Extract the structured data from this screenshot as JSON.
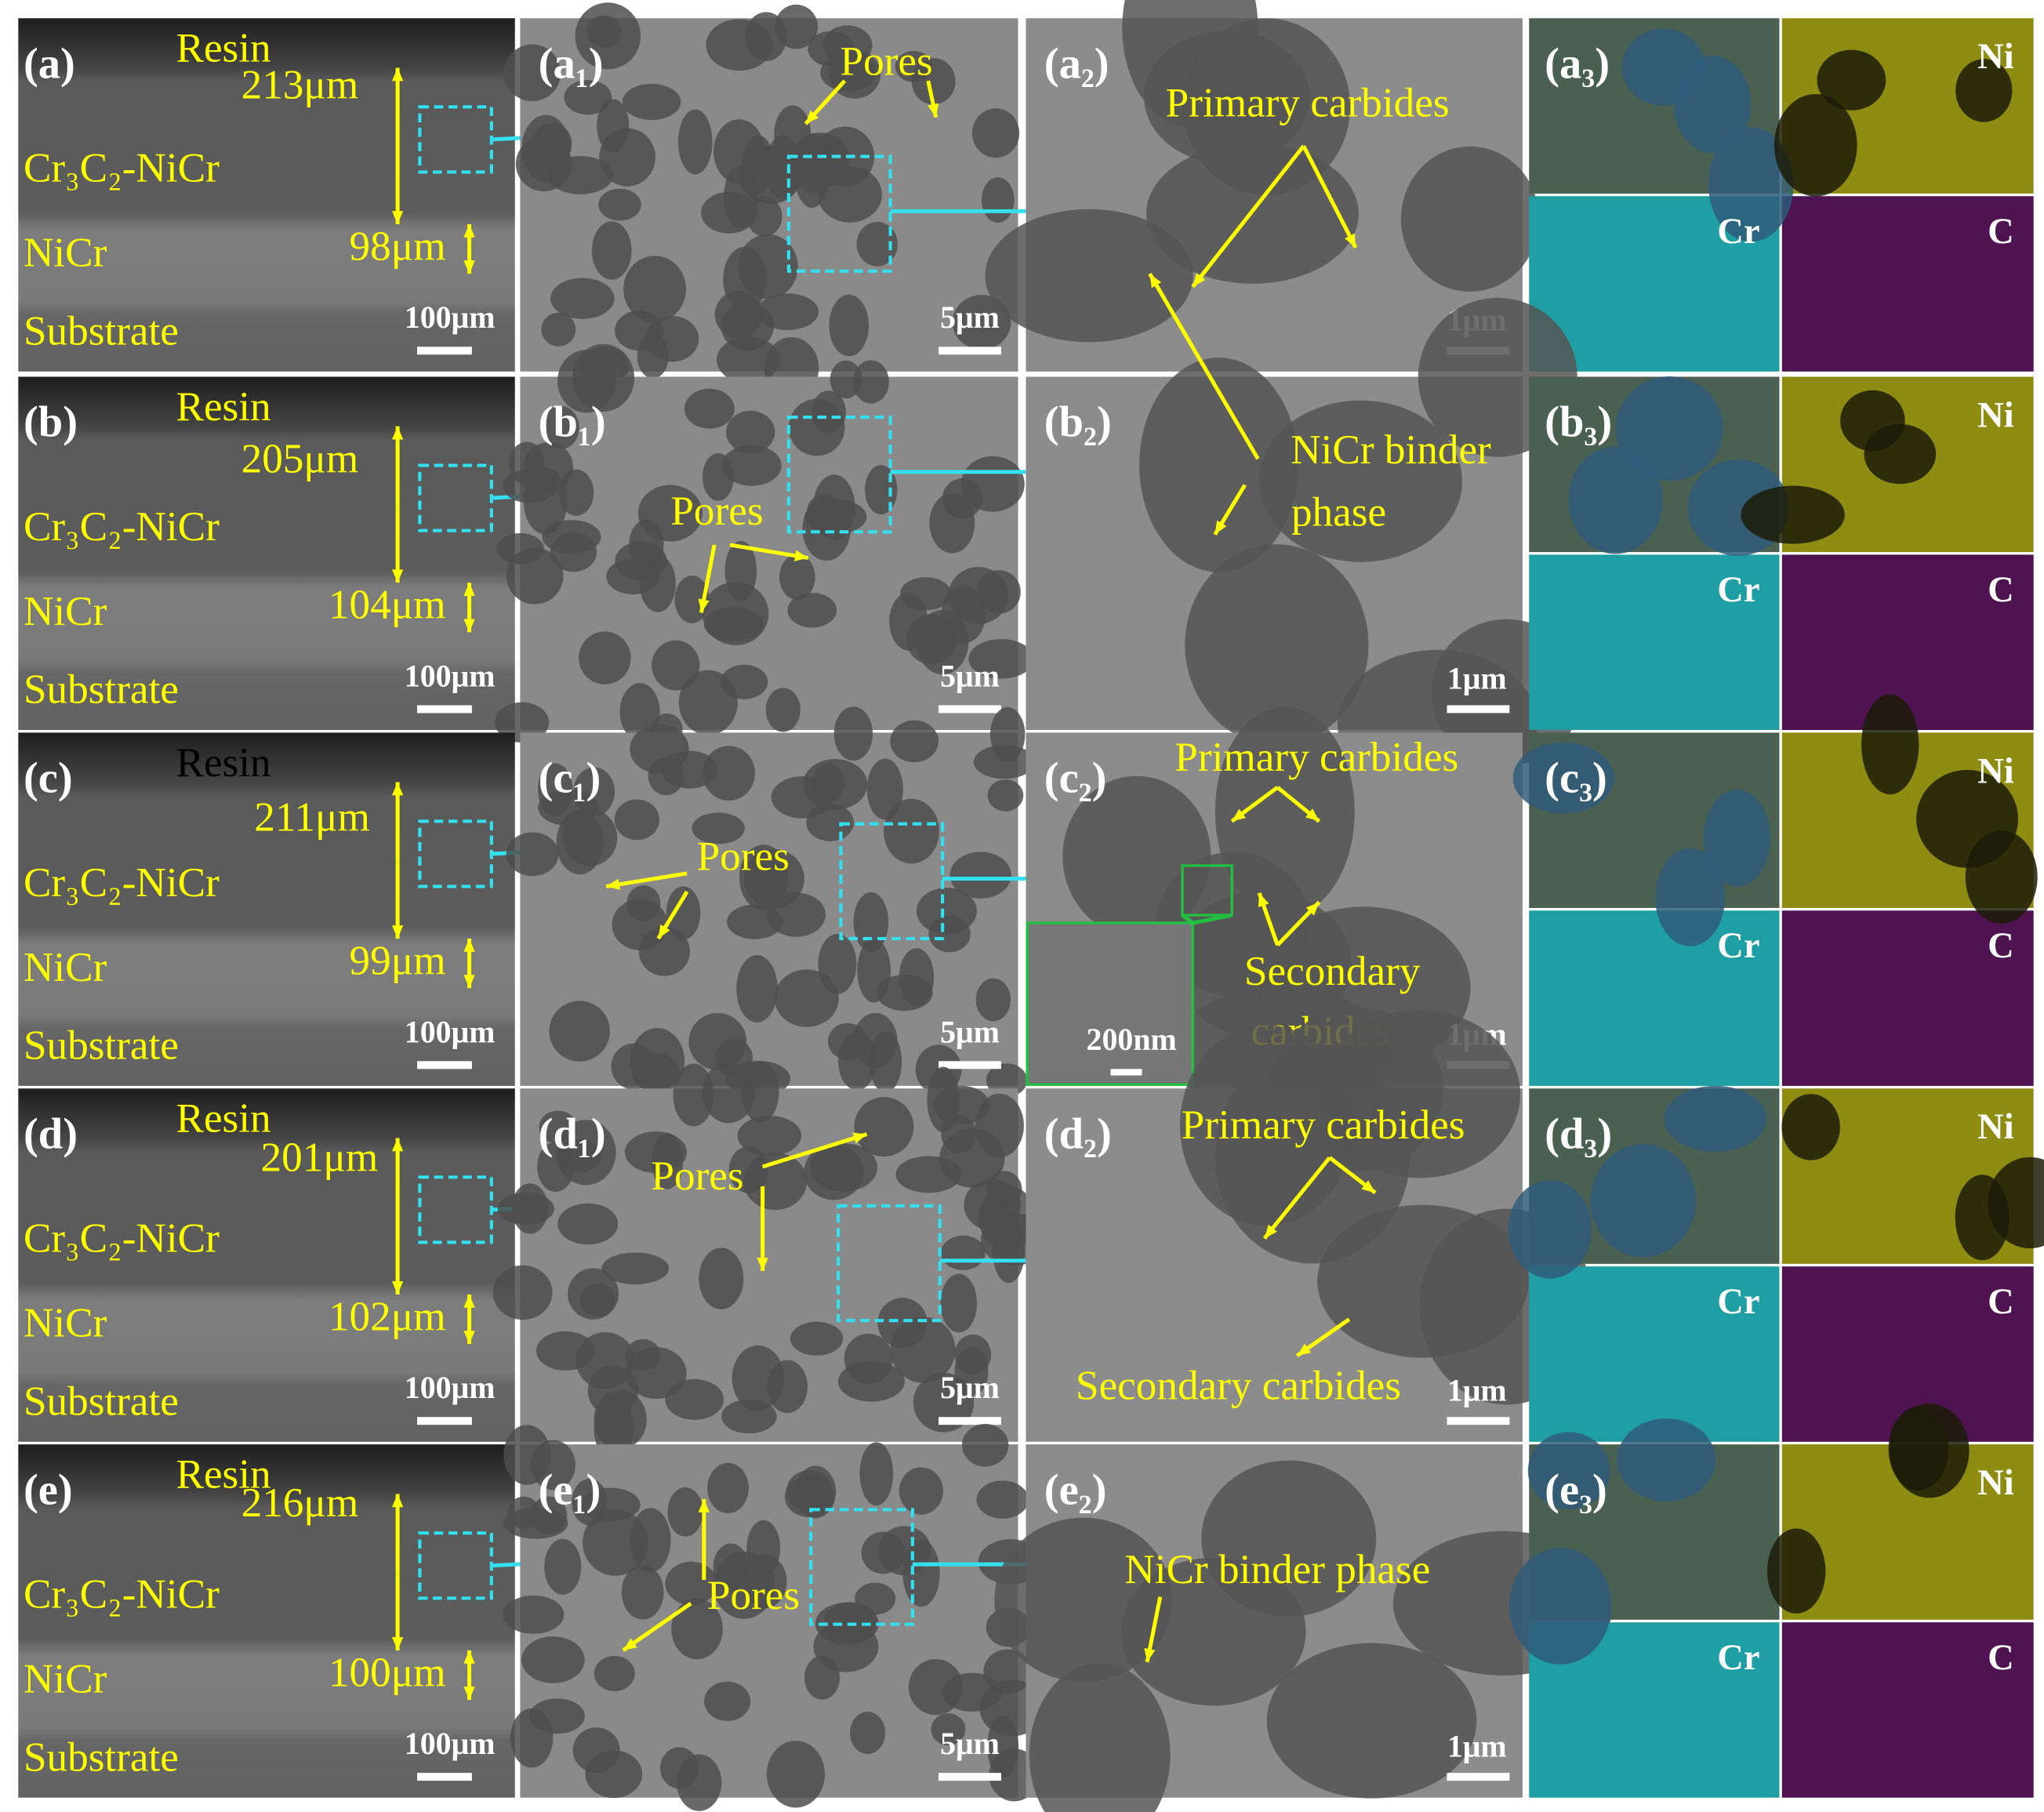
{
  "panels": [
    {
      "cross_section": {
        "label": "(a)",
        "resin": "Resin",
        "coating": "Cr₃C₂-NiCr",
        "coating_thickness": "213μm",
        "bond": "NiCr",
        "bond_thickness": "98μm",
        "substrate": "Substrate",
        "scale": "100μm"
      },
      "micro": {
        "label": "(a₁)",
        "annotation": "Pores",
        "scale": "5μm"
      },
      "detail": {
        "label": "(a₂)",
        "annotations": [
          "Primary carbides"
        ],
        "scale": "1μm"
      },
      "eds": {
        "label": "(a₃)",
        "maps": [
          "Ni",
          "Cr",
          "C"
        ]
      }
    },
    {
      "cross_section": {
        "label": "(b)",
        "resin": "Resin",
        "coating": "Cr₃C₂-NiCr",
        "coating_thickness": "205μm",
        "bond": "NiCr",
        "bond_thickness": "104μm",
        "substrate": "Substrate",
        "scale": "100μm"
      },
      "micro": {
        "label": "(b₁)",
        "annotation": "Pores",
        "scale": "5μm"
      },
      "detail": {
        "label": "(b₂)",
        "annotations": [
          "NiCr binder",
          "phase"
        ],
        "scale": "1μm"
      },
      "eds": {
        "label": "(b₃)",
        "maps": [
          "Ni",
          "Cr",
          "C"
        ]
      }
    },
    {
      "cross_section": {
        "label": "(c)",
        "resin": "Resin",
        "coating": "Cr₃C₂-NiCr",
        "coating_thickness": "211μm",
        "bond": "NiCr",
        "bond_thickness": "99μm",
        "substrate": "Substrate",
        "scale": "100μm"
      },
      "micro": {
        "label": "(c₁)",
        "annotation": "Pores",
        "scale": "5μm"
      },
      "detail": {
        "label": "(c₂)",
        "annotations": [
          "Primary carbides",
          "Secondary",
          "carbides"
        ],
        "inset_scale": "200nm",
        "scale": "1μm"
      },
      "eds": {
        "label": "(c₃)",
        "maps": [
          "Ni",
          "Cr",
          "C"
        ]
      }
    },
    {
      "cross_section": {
        "label": "(d)",
        "resin": "Resin",
        "coating": "Cr₃C₂-NiCr",
        "coating_thickness": "201μm",
        "bond": "NiCr",
        "bond_thickness": "102μm",
        "substrate": "Substrate",
        "scale": "100μm"
      },
      "micro": {
        "label": "(d₁)",
        "annotation": "Pores",
        "scale": "5μm"
      },
      "detail": {
        "label": "(d₂)",
        "annotations": [
          "Primary carbides",
          "Secondary carbides"
        ],
        "scale": "1μm"
      },
      "eds": {
        "label": "(d₃)",
        "maps": [
          "Ni",
          "Cr",
          "C"
        ]
      }
    },
    {
      "cross_section": {
        "label": "(e)",
        "resin": "Resin",
        "coating": "Cr₃C₂-NiCr",
        "coating_thickness": "216μm",
        "bond": "NiCr",
        "bond_thickness": "100μm",
        "substrate": "Substrate",
        "scale": "100μm"
      },
      "micro": {
        "label": "(e₁)",
        "annotation": "Pores",
        "scale": "5μm"
      },
      "detail": {
        "label": "(e₂)",
        "annotations": [
          "NiCr binder phase"
        ],
        "scale": "1μm"
      },
      "eds": {
        "label": "(e₃)",
        "maps": [
          "Ni",
          "Cr",
          "C"
        ]
      }
    }
  ]
}
